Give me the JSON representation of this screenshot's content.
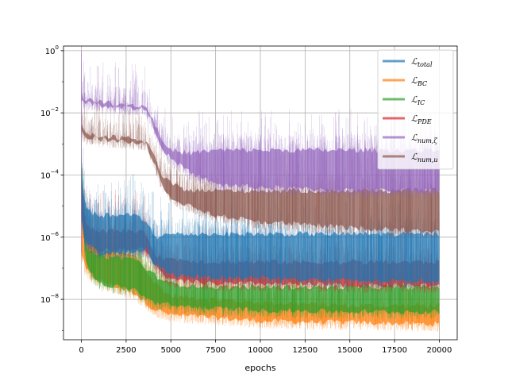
{
  "chart_data": {
    "type": "line",
    "title": "",
    "xlabel": "epochs",
    "ylabel": "",
    "xlim": [
      -1000,
      21000
    ],
    "ylim_exponent": [
      -9.3,
      0.15
    ],
    "yscale": "log",
    "grid": true,
    "legend_position": "top-right",
    "x_ticks": [
      "0",
      "2500",
      "5000",
      "7500",
      "10000",
      "12500",
      "15000",
      "17500",
      "20000"
    ],
    "x_tick_values": [
      0,
      2500,
      5000,
      7500,
      10000,
      12500,
      15000,
      17500,
      20000
    ],
    "y_ticks": [
      {
        "exponent": 0,
        "base": "10",
        "exp_text": "0"
      },
      {
        "exponent": -2,
        "base": "10",
        "exp_text": "−2"
      },
      {
        "exponent": -4,
        "base": "10",
        "exp_text": "−4"
      },
      {
        "exponent": -6,
        "base": "10",
        "exp_text": "−6"
      },
      {
        "exponent": -8,
        "base": "10",
        "exp_text": "−8"
      }
    ],
    "series": [
      {
        "main": "ℒ",
        "sub": "total",
        "color": "#1f77b4",
        "x": [
          0,
          200,
          500,
          1000,
          2000,
          3000,
          3600,
          4200,
          5000,
          7500,
          10000,
          15000,
          20000
        ],
        "low": [
          -5.4,
          -6.2,
          -6.3,
          -6.5,
          -6.5,
          -6.5,
          -6.4,
          -6.9,
          -7.2,
          -7.3,
          -7.3,
          -7.4,
          -7.4
        ],
        "high": [
          -3.8,
          -5.0,
          -5.2,
          -5.3,
          -5.3,
          -5.3,
          -5.5,
          -6.0,
          -5.9,
          -5.9,
          -5.9,
          -5.9,
          -5.9
        ]
      },
      {
        "main": "ℒ",
        "sub": "BC",
        "color": "#ff7f0e",
        "x": [
          0,
          200,
          500,
          1000,
          2000,
          3000,
          4000,
          5000,
          7500,
          10000,
          15000,
          20000
        ],
        "low": [
          -6.5,
          -7.0,
          -7.2,
          -7.4,
          -7.6,
          -7.8,
          -8.3,
          -8.5,
          -8.6,
          -8.7,
          -8.75,
          -8.8
        ],
        "high": [
          -5.0,
          -6.0,
          -6.3,
          -6.4,
          -6.5,
          -6.6,
          -7.4,
          -7.9,
          -8.0,
          -8.1,
          -8.2,
          -8.2
        ]
      },
      {
        "main": "ℒ",
        "sub": "IC",
        "color": "#2ca02c",
        "x": [
          0,
          200,
          500,
          1000,
          2000,
          3000,
          4000,
          5000,
          7500,
          10000,
          15000,
          20000
        ],
        "low": [
          -4.6,
          -6.6,
          -7.1,
          -7.5,
          -7.6,
          -7.7,
          -8.1,
          -8.2,
          -8.3,
          -8.35,
          -8.4,
          -8.4
        ],
        "high": [
          -3.5,
          -6.2,
          -6.5,
          -6.6,
          -6.65,
          -6.7,
          -7.2,
          -7.5,
          -7.6,
          -7.6,
          -7.6,
          -7.6
        ]
      },
      {
        "main": "ℒ",
        "sub": "PDE",
        "color": "#d62728",
        "x": [
          0,
          200,
          500,
          1000,
          2000,
          3000,
          3600,
          4200,
          5000,
          7500,
          10000,
          15000,
          20000
        ],
        "low": [
          -5.2,
          -6.1,
          -6.3,
          -6.4,
          -6.4,
          -6.4,
          -6.4,
          -7.0,
          -7.4,
          -7.5,
          -7.5,
          -7.55,
          -7.55
        ],
        "high": [
          -4.1,
          -5.5,
          -5.7,
          -5.8,
          -5.8,
          -5.8,
          -5.9,
          -6.6,
          -6.7,
          -6.8,
          -6.8,
          -6.8,
          -6.8
        ]
      },
      {
        "main": "ℒ",
        "sub": "num,ζ",
        "color": "#9467bd",
        "x": [
          0,
          100,
          500,
          1000,
          2000,
          3000,
          3600,
          4000,
          4500,
          5000,
          6000,
          7500,
          10000,
          15000,
          20000
        ],
        "low": [
          -1.5,
          -1.65,
          -1.7,
          -1.75,
          -1.8,
          -1.85,
          -1.9,
          -2.4,
          -3.1,
          -3.5,
          -3.9,
          -4.3,
          -4.4,
          -4.5,
          -4.5
        ],
        "high": [
          -1.3,
          -1.5,
          -1.6,
          -1.65,
          -1.7,
          -1.75,
          -1.8,
          -2.2,
          -2.9,
          -3.2,
          -3.3,
          -3.2,
          -3.2,
          -3.2,
          -3.2
        ]
      },
      {
        "main": "ℒ",
        "sub": "num,u",
        "color": "#8c564b",
        "x": [
          0,
          100,
          500,
          1000,
          2000,
          3000,
          3600,
          4000,
          4500,
          5000,
          6000,
          7500,
          10000,
          15000,
          20000
        ],
        "low": [
          -2.6,
          -2.75,
          -2.8,
          -2.85,
          -2.9,
          -2.95,
          -3.0,
          -3.5,
          -4.3,
          -4.7,
          -5.0,
          -5.3,
          -5.5,
          -5.7,
          -5.8
        ],
        "high": [
          -2.4,
          -2.6,
          -2.7,
          -2.75,
          -2.8,
          -2.85,
          -2.95,
          -3.3,
          -4.0,
          -4.3,
          -4.5,
          -4.5,
          -4.5,
          -4.5,
          -4.5
        ]
      }
    ]
  }
}
